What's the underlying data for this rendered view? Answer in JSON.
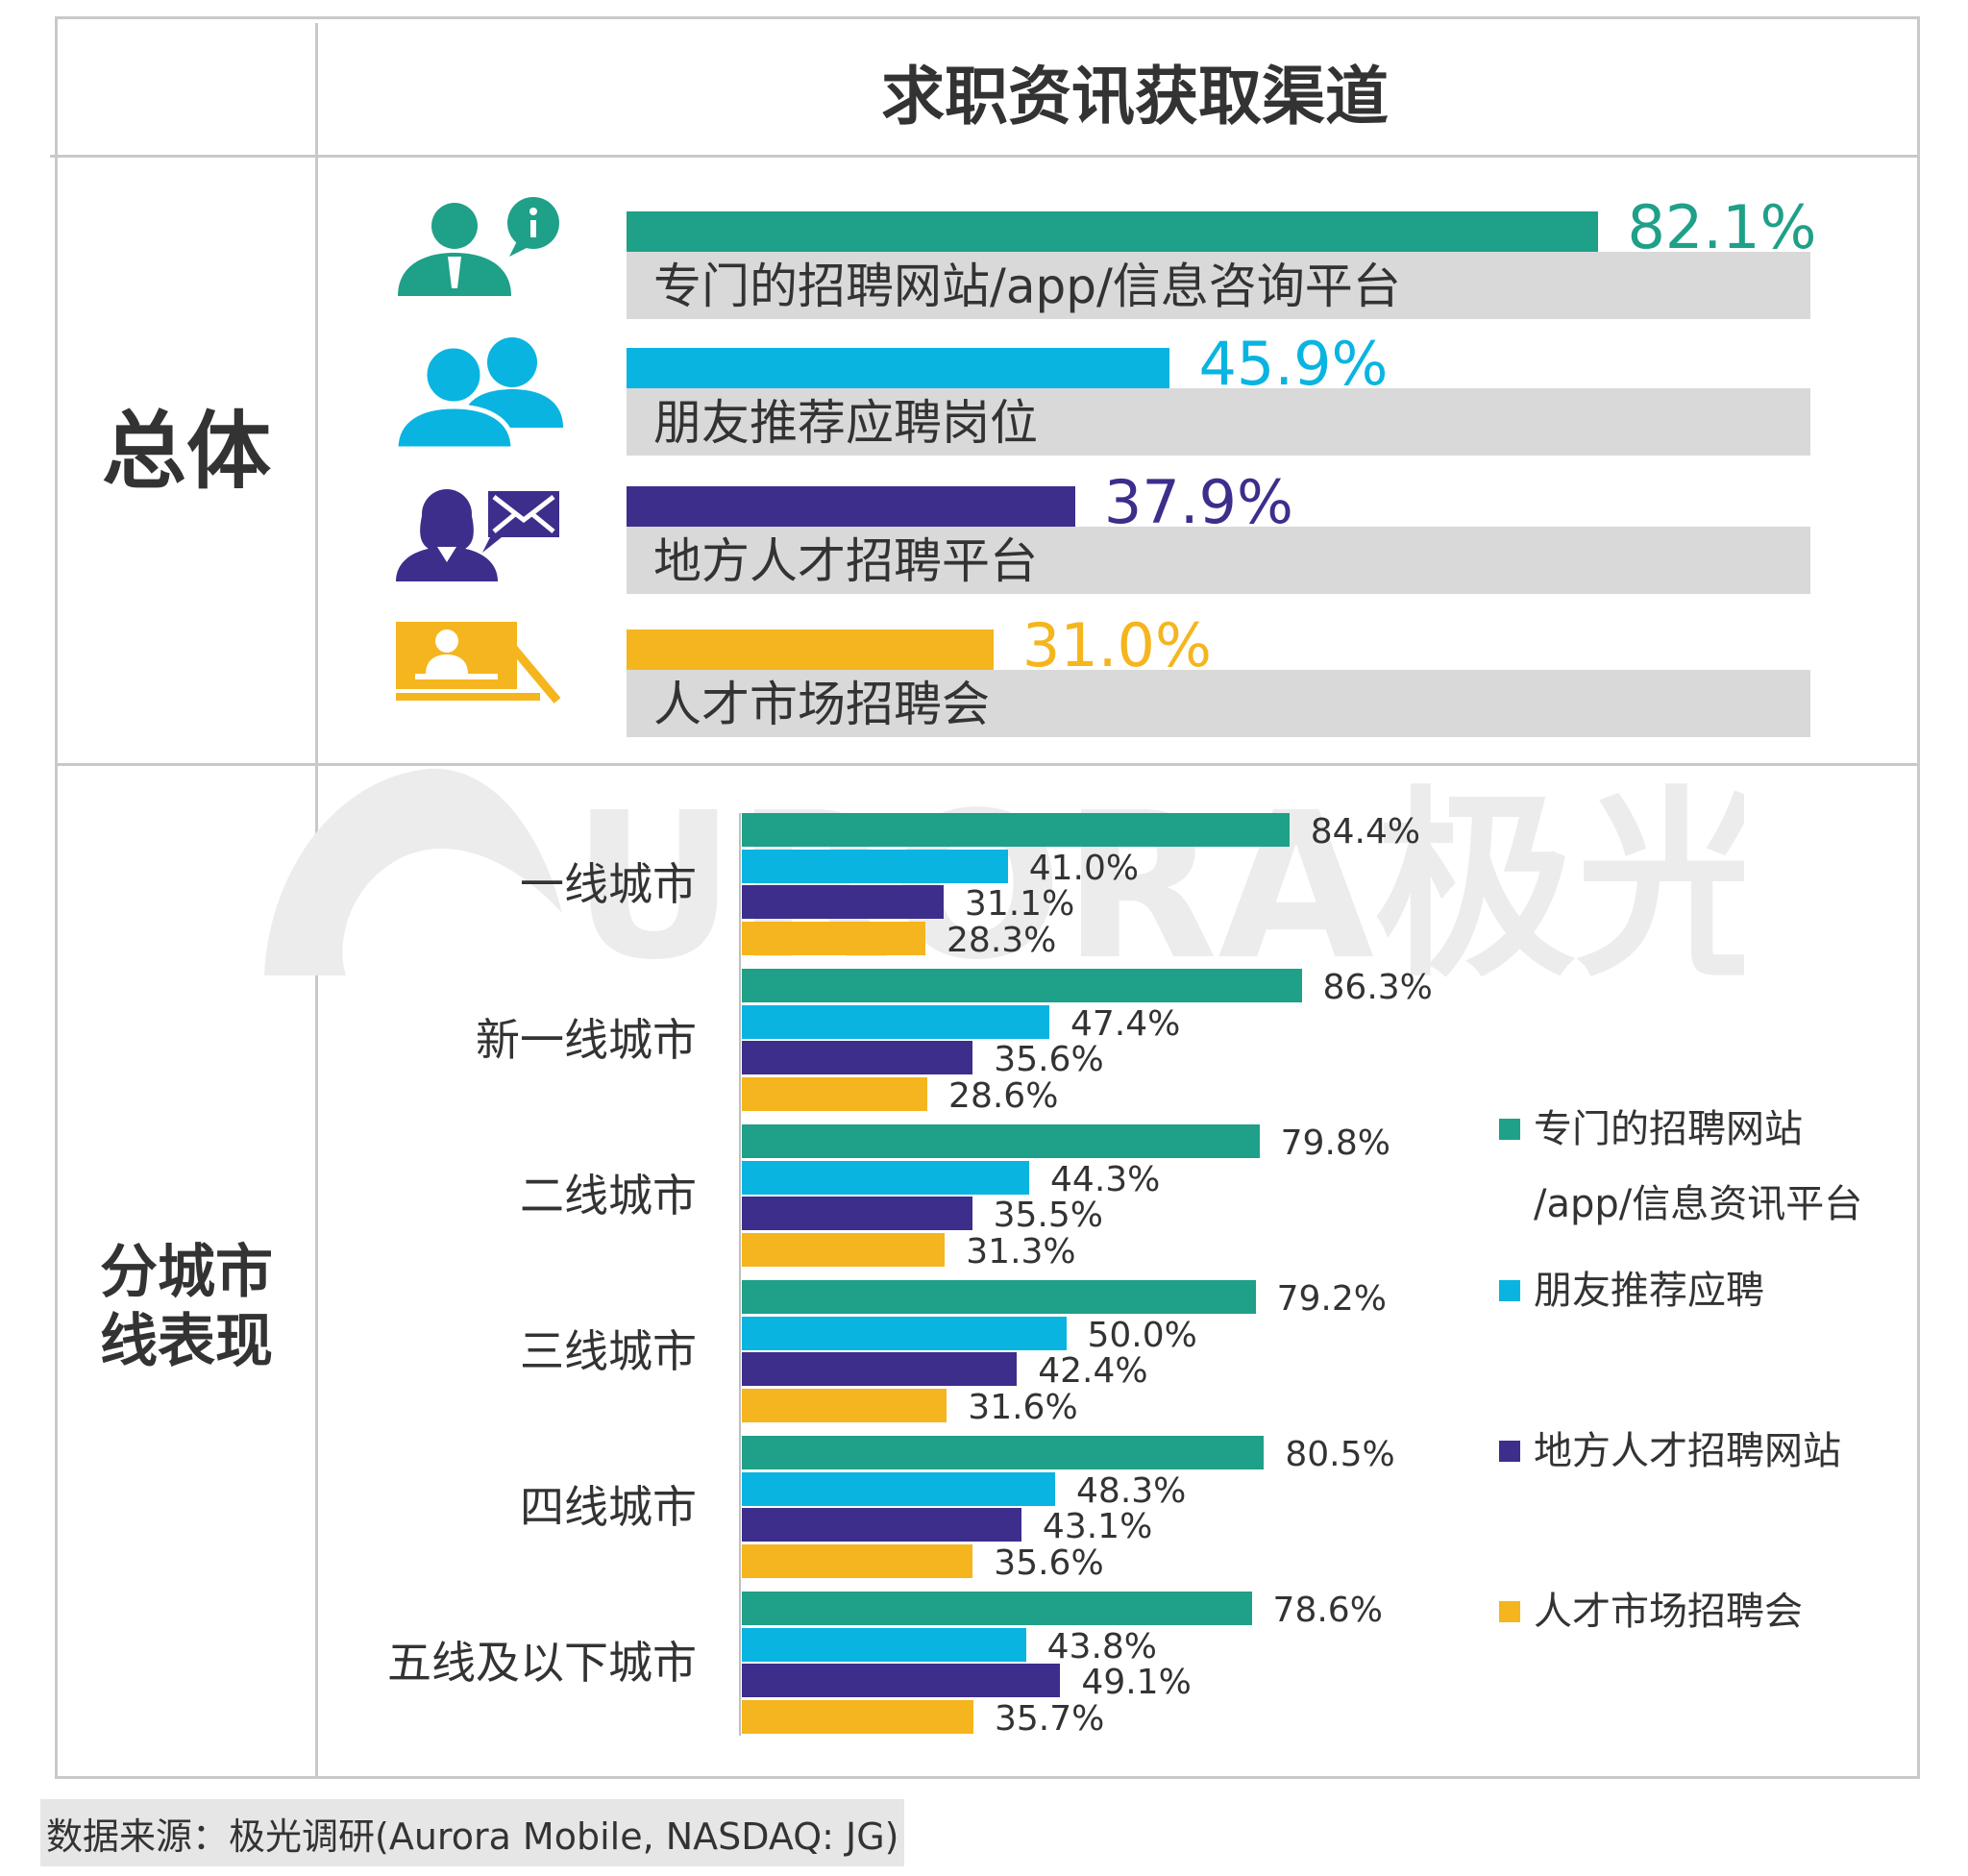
{
  "chart_data": [
    {
      "type": "bar",
      "title": "求职资讯获取渠道",
      "row_label": "总体",
      "categories": [
        "专门的招聘网站/app/信息咨询平台",
        "朋友推荐应聘岗位",
        "地方人才招聘平台",
        "人才市场招聘会"
      ],
      "values": [
        82.1,
        45.9,
        37.9,
        31.0
      ],
      "value_labels": [
        "82.1%",
        "45.9%",
        "37.9%",
        "31.0%"
      ],
      "colors": [
        "#1fa088",
        "#0ab4e1",
        "#3d2e8c",
        "#f5b51e"
      ],
      "icons": [
        "consultant-info-icon",
        "two-people-icon",
        "woman-mail-icon",
        "presentation-board-icon"
      ],
      "xlim": [
        0,
        100
      ]
    },
    {
      "type": "bar",
      "row_label": "分城市线表现",
      "row_label_lines": [
        "分城市",
        "线表现"
      ],
      "categories": [
        "一线城市",
        "新一线城市",
        "二线城市",
        "三线城市",
        "四线城市",
        "五线及以下城市"
      ],
      "series": [
        {
          "name": "专门的招聘网站/app/信息资讯平台",
          "color": "#1fa088",
          "values": [
            84.4,
            86.3,
            79.8,
            79.2,
            80.5,
            78.6
          ],
          "labels": [
            "84.4%",
            "86.3%",
            "79.8%",
            "79.2%",
            "80.5%",
            "78.6%"
          ]
        },
        {
          "name": "朋友推荐应聘",
          "color": "#0ab4e1",
          "values": [
            41.0,
            47.4,
            44.3,
            50.0,
            48.3,
            43.8
          ],
          "labels": [
            "41.0%",
            "47.4%",
            "44.3%",
            "50.0%",
            "48.3%",
            "43.8%"
          ]
        },
        {
          "name": "地方人才招聘网站",
          "color": "#3d2e8c",
          "values": [
            31.1,
            35.6,
            35.5,
            42.4,
            43.1,
            49.1
          ],
          "labels": [
            "31.1%",
            "35.6%",
            "35.5%",
            "42.4%",
            "43.1%",
            "49.1%"
          ]
        },
        {
          "name": "人才市场招聘会",
          "color": "#f5b51e",
          "values": [
            28.3,
            28.6,
            31.3,
            31.6,
            35.6,
            35.7
          ],
          "labels": [
            "28.3%",
            "28.6%",
            "31.3%",
            "31.6%",
            "35.6%",
            "35.7%"
          ]
        }
      ],
      "legend_lines": [
        [
          "专门的招聘网站",
          "/app/信息资讯平台"
        ],
        [
          "朋友推荐应聘"
        ],
        [
          "地方人才招聘网站"
        ],
        [
          "人才市场招聘会"
        ]
      ],
      "legend_position": "right",
      "xlim": [
        0,
        100
      ]
    }
  ],
  "watermark": "URORA极光",
  "footer": "数据来源：极光调研(Aurora Mobile, NASDAQ: JG)"
}
